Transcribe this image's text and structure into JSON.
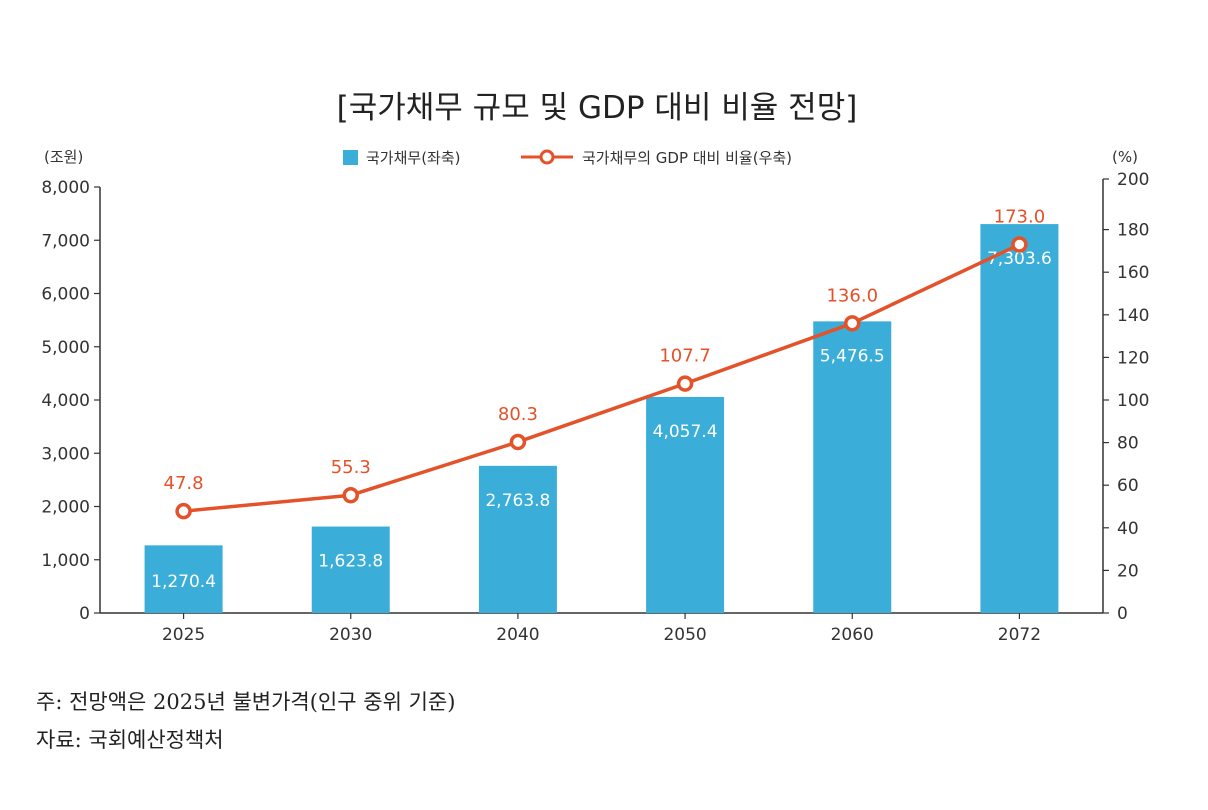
{
  "chart_data": {
    "type": "bar+line",
    "title": "[국가채무 규모 및 GDP 대비 비율 전망]",
    "categories": [
      "2025",
      "2030",
      "2040",
      "2050",
      "2060",
      "2072"
    ],
    "series": [
      {
        "name": "국가채무(좌축)",
        "type": "bar",
        "axis": "left",
        "values": [
          1270.4,
          1623.8,
          2763.8,
          4057.4,
          5476.5,
          7303.6
        ],
        "value_labels": [
          "1,270.4",
          "1,623.8",
          "2,763.8",
          "4,057.4",
          "5,476.5",
          "7,303.6"
        ]
      },
      {
        "name": "국가채무의 GDP 대비 비율(우축)",
        "type": "line",
        "axis": "right",
        "values": [
          47.8,
          55.3,
          80.3,
          107.7,
          136.0,
          173.0
        ],
        "value_labels": [
          "47.8",
          "55.3",
          "80.3",
          "107.7",
          "136.0",
          "173.0"
        ]
      }
    ],
    "y_left": {
      "label": "(조원)",
      "lim": [
        0,
        8000
      ],
      "ticks": [
        0,
        1000,
        2000,
        3000,
        4000,
        5000,
        6000,
        7000,
        8000
      ],
      "tick_labels": [
        "0",
        "1,000",
        "2,000",
        "3,000",
        "4,000",
        "5,000",
        "6,000",
        "7,000",
        "8,000"
      ]
    },
    "y_right": {
      "label": "(%)",
      "lim": [
        0,
        200
      ],
      "ticks": [
        0,
        20,
        40,
        60,
        80,
        100,
        120,
        140,
        160,
        180,
        200
      ],
      "tick_labels": [
        "0",
        "20",
        "40",
        "60",
        "80",
        "100",
        "120",
        "140",
        "160",
        "180",
        "200"
      ]
    },
    "legend_position": "top-center",
    "grid": false,
    "colors": {
      "bar": "#3aaed8",
      "line": "#e4522a",
      "axis": "#333333",
      "bar_label": "#ffffff"
    }
  },
  "notes": {
    "note": "주: 전망액은 2025년 불변가격(인구 중위 기준)",
    "source": "자료: 국회예산정책처"
  }
}
